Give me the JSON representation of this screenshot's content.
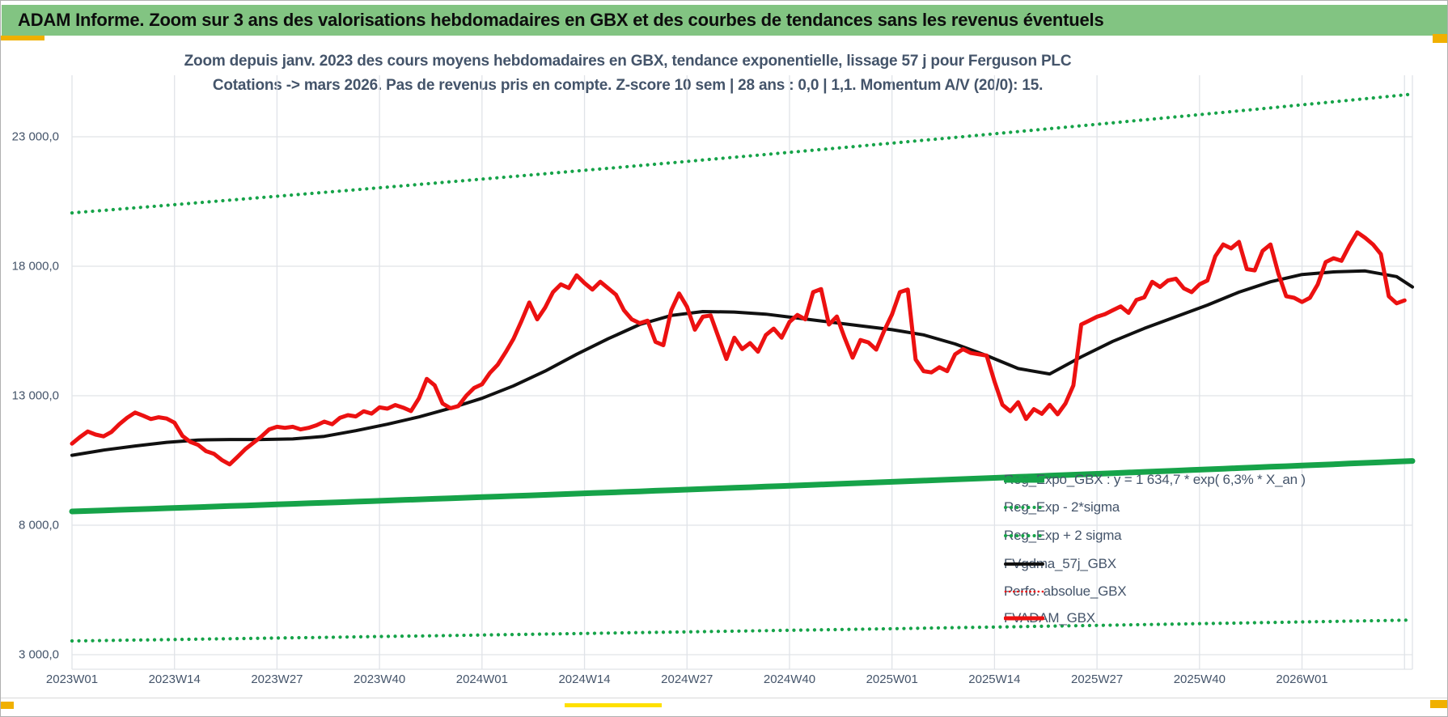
{
  "header": {
    "title": "ADAM Informe. Zoom sur 3 ans des valorisations hebdomadaires en GBX et des courbes de tendances sans les revenus éventuels",
    "bar_color": "#82C482",
    "accent_color": "#F0B000"
  },
  "chart_data": {
    "type": "line",
    "title_line1": "Zoom depuis janv. 2023 des cours moyens hebdomadaires en GBX, tendance exponentielle, lissage 57 j pour Ferguson PLC",
    "title_line2": "Cotations -> mars 2026. Pas de revenus pris en compte. Z-score 10 sem | 28 ans : 0,0 | 1,1. Momentum A/V (20/0): 15.",
    "x_tick_labels": [
      "2023W01",
      "2023W14",
      "2023W27",
      "2023W40",
      "2024W01",
      "2024W14",
      "2024W27",
      "2024W40",
      "2025W01",
      "2025W14",
      "2025W27",
      "2025W40",
      "2026W01"
    ],
    "x_weeks_per_tick": 13,
    "x_domain_weeks": 170,
    "y_ticks": [
      {
        "label": "23 000,0",
        "value": 23000
      },
      {
        "label": "18 000,0",
        "value": 18000
      },
      {
        "label": "13 000,0",
        "value": 13000
      },
      {
        "label": "8 000,0",
        "value": 8000
      },
      {
        "label": "3 000,0",
        "value": 3000
      }
    ],
    "grid_color": "#E0E3E8",
    "series": [
      {
        "name": "Reg_Exp + 2 sigma",
        "type": "exponential",
        "start_value": 20060,
        "annual_rate": 0.063,
        "color": "#16A349",
        "style": "dotted",
        "width": 4.2
      },
      {
        "name": "Reg_Exp - 2*sigma",
        "type": "exponential",
        "start_value": 3530,
        "annual_rate": 0.063,
        "color": "#16A349",
        "style": "dotted",
        "width": 4.2
      },
      {
        "name": "Reg_Expo_GBX",
        "type": "exponential",
        "start_value": 8530,
        "annual_rate": 0.063,
        "color": "#16A349",
        "style": "solid",
        "width": 7
      },
      {
        "name": "FVgdma_57j_GBX",
        "type": "sampled",
        "start_week": 0,
        "step_weeks": 4,
        "color": "#111111",
        "style": "solid",
        "width": 4,
        "values": [
          10700,
          10900,
          11060,
          11200,
          11290,
          11310,
          11310,
          11330,
          11430,
          11650,
          11900,
          12180,
          12520,
          12900,
          13380,
          13950,
          14600,
          15200,
          15750,
          16100,
          16250,
          16230,
          16150,
          16000,
          15850,
          15700,
          15550,
          15350,
          15000,
          14550,
          14050,
          13840,
          14500,
          15100,
          15600,
          16050,
          16500,
          17000,
          17400,
          17680,
          17780,
          17820,
          17600,
          17200
        ]
      },
      {
        "name": "FVADAM_GBX",
        "type": "sampled",
        "start_week": 0,
        "step_weeks": 1,
        "color": "#EC1111",
        "style": "solid",
        "width": 5,
        "values": [
          11150,
          11400,
          11620,
          11500,
          11430,
          11600,
          11900,
          12150,
          12350,
          12230,
          12100,
          12170,
          12120,
          11960,
          11450,
          11220,
          11100,
          10860,
          10760,
          10520,
          10350,
          10640,
          10940,
          11180,
          11420,
          11700,
          11800,
          11760,
          11800,
          11700,
          11760,
          11860,
          12000,
          11900,
          12150,
          12250,
          12200,
          12400,
          12310,
          12550,
          12500,
          12640,
          12540,
          12410,
          12900,
          13650,
          13400,
          12700,
          12520,
          12600,
          13000,
          13300,
          13440,
          13880,
          14200,
          14680,
          15200,
          15880,
          16600,
          15950,
          16400,
          17000,
          17300,
          17160,
          17650,
          17350,
          17100,
          17400,
          17150,
          16900,
          16300,
          15950,
          15800,
          15900,
          15080,
          14950,
          16300,
          16950,
          16430,
          15550,
          16050,
          16100,
          15250,
          14420,
          15240,
          14800,
          15030,
          14700,
          15340,
          15590,
          15240,
          15850,
          16120,
          15950,
          17000,
          17120,
          15750,
          16060,
          15230,
          14470,
          15150,
          15060,
          14780,
          15500,
          16140,
          17000,
          17100,
          14400,
          13950,
          13900,
          14100,
          13950,
          14600,
          14800,
          14650,
          14600,
          14550,
          13550,
          12650,
          12400,
          12750,
          12100,
          12480,
          12300,
          12650,
          12280,
          12700,
          13400,
          15750,
          15900,
          16050,
          16150,
          16300,
          16450,
          16200,
          16700,
          16800,
          17400,
          17200,
          17450,
          17520,
          17150,
          17000,
          17300,
          17450,
          18380,
          18840,
          18690,
          18940,
          17890,
          17840,
          18590,
          18840,
          17720,
          16840,
          16780,
          16620,
          16780,
          17300,
          18160,
          18310,
          18210,
          18790,
          19310,
          19100,
          18840,
          18470,
          16840,
          16570,
          16680
        ]
      }
    ],
    "legend_position": "right-inside"
  },
  "legend": {
    "items": [
      {
        "label": "Reg_Expo_GBX : y = 1 634,7 * exp( 6,3% *  X_an )",
        "marker": "green-solid"
      },
      {
        "label": "Reg_Exp - 2*sigma",
        "marker": "green-dotted"
      },
      {
        "label": "Reg_Exp + 2 sigma",
        "marker": "green-dotted"
      },
      {
        "label": "FVgdma_57j_GBX",
        "marker": "black-solid"
      },
      {
        "label": "Perfo. absolue_GBX",
        "marker": "red-dotted"
      },
      {
        "label": "FVADAM_GBX",
        "marker": "red-solid"
      }
    ]
  },
  "colors": {
    "green_line": "#16A349",
    "red_line": "#EC1111",
    "black_line": "#111111",
    "text_dark": "#44546A",
    "banner_green": "#82C482",
    "gold": "#F0B000",
    "bright_yellow": "#FFE000"
  }
}
